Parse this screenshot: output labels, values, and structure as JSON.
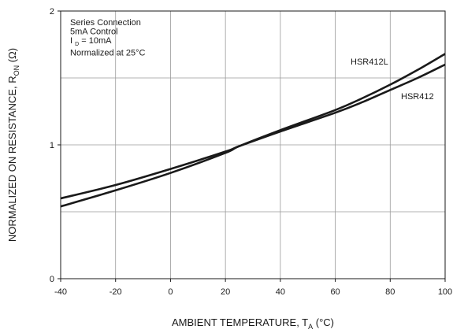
{
  "chart_data": {
    "type": "line",
    "title": "",
    "xlabel": "AMBIENT TEMPERATURE, T",
    "xlabel_sub": "A",
    "xlabel_unit": " (°C)",
    "ylabel": "NORMALIZED ON RESISTANCE, R",
    "ylabel_sub": "ON",
    "ylabel_unit": " (Ω)",
    "xlim": [
      -40,
      100
    ],
    "ylim": [
      0,
      2
    ],
    "x_ticks": [
      -40,
      -20,
      0,
      20,
      40,
      60,
      80,
      100
    ],
    "x_tick_labels": [
      "-40",
      "-20",
      "0",
      "20",
      "40",
      "60",
      "80",
      "100"
    ],
    "y_ticks": [
      0,
      1,
      2
    ],
    "y_tick_labels": [
      "0",
      "1",
      "2"
    ],
    "grid": true,
    "annotation_lines": [
      {
        "text": "Series Connection"
      },
      {
        "text": "5mA Control"
      },
      {
        "main": "I",
        "sub": "D",
        "rest": " = 10mA"
      },
      {
        "text": "Normalized at 25°C"
      }
    ],
    "series": [
      {
        "name": "HSR412L",
        "x": [
          -40,
          -20,
          0,
          20,
          25,
          40,
          60,
          70,
          80,
          90,
          100
        ],
        "y": [
          0.54,
          0.66,
          0.79,
          0.94,
          0.99,
          1.11,
          1.26,
          1.35,
          1.45,
          1.56,
          1.68
        ]
      },
      {
        "name": "HSR412",
        "x": [
          -40,
          -20,
          0,
          20,
          25,
          40,
          60,
          70,
          80,
          90,
          100
        ],
        "y": [
          0.6,
          0.7,
          0.82,
          0.95,
          0.99,
          1.1,
          1.24,
          1.32,
          1.41,
          1.5,
          1.6
        ]
      }
    ]
  }
}
